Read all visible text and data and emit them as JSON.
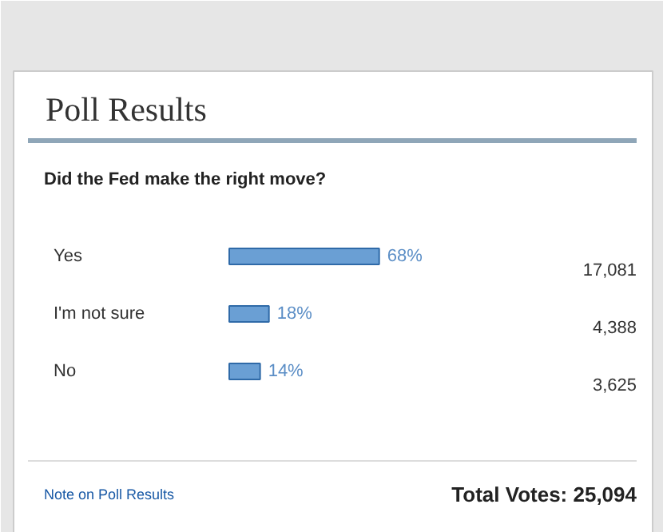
{
  "chart_data": {
    "type": "bar",
    "orientation": "horizontal",
    "title": "Poll Results",
    "subtitle": "Did the Fed make the right move?",
    "categories": [
      "Yes",
      "I'm not sure",
      "No"
    ],
    "values": [
      68,
      18,
      14
    ],
    "color": "#6a9fd4",
    "value_labels": [
      "68%",
      "18%",
      "14%"
    ],
    "annotations": [
      "17,081",
      "4,388",
      "3,625",
      "Note on Poll Results",
      "Total Votes: 25,094"
    ]
  }
}
